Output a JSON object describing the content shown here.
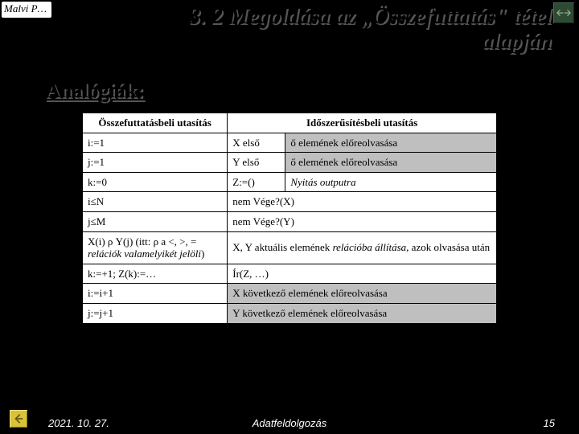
{
  "handwriting": "Malvi P…",
  "title_line1": "3. 2 Megoldása az „Összefuttatás\" tétel",
  "title_line2": "alapján",
  "subtitle": "Analógiák:",
  "table": {
    "headers": [
      "Összefuttatásbeli utasítás",
      "Időszerűsítésbeli utasítás"
    ],
    "rows": [
      {
        "c0": "i:=1",
        "c1": "X első",
        "c2": "ő elemének előreolvasása",
        "shaded2": true,
        "tall": false
      },
      {
        "c0": "j:=1",
        "c1": "Y első",
        "c2": "ő elemének előreolvasása",
        "shaded2": true,
        "tall": false
      },
      {
        "c0": "k:=0",
        "c1": "Z:=()",
        "c2": "Nyitás outputra",
        "shaded2": false,
        "tall": false,
        "c2italic": true
      },
      {
        "c0": "i≤N",
        "c1": "",
        "c2": "nem Vége?(X)",
        "shaded2": false,
        "tall": false,
        "merge12": true
      },
      {
        "c0": "j≤M",
        "c1": "",
        "c2": "nem Vége?(Y)",
        "shaded2": false,
        "tall": false,
        "merge12": true
      },
      {
        "c0": "X(i) ρ Y(j)  (itt: ρ  a  <, >, = relációk valamelyikét jelöli)",
        "c1": "",
        "c2": "X, Y aktuális elemének relációba állítása, azok olvasása után",
        "shaded2": false,
        "tall": true,
        "merge12": true,
        "c0indent": true,
        "c2indent": true,
        "c0italic_part": "relációk valamelyikét jelöli",
        "c2italic_part": "relációba állítása"
      },
      {
        "c0": "k:=+1; Z(k):=…",
        "c1": "",
        "c2": "Ír(Z, …)",
        "shaded2": false,
        "tall": false,
        "merge12": true
      },
      {
        "c0": "i:=i+1",
        "c1": "",
        "c2": "X következő elemének előreolvasása",
        "shaded2": true,
        "tall": false,
        "merge12": true
      },
      {
        "c0": "j:=j+1",
        "c1": "",
        "c2": "Y következő elemének előreolvasása",
        "shaded2": true,
        "tall": false,
        "merge12": true
      }
    ]
  },
  "footer": {
    "date": "2021. 10. 27.",
    "label": "Adatfeldolgozás",
    "page": "15"
  },
  "colors": {
    "page_bg": "#000000",
    "text_title": "#000000",
    "title_shadow": "#555555",
    "table_bg": "#ffffff",
    "shaded_cell": "#bfbfbf",
    "corner_btn_bg": "#2e4a32",
    "footer_icon_bg": "#d8c23a",
    "footer_text": "#ffffff"
  }
}
